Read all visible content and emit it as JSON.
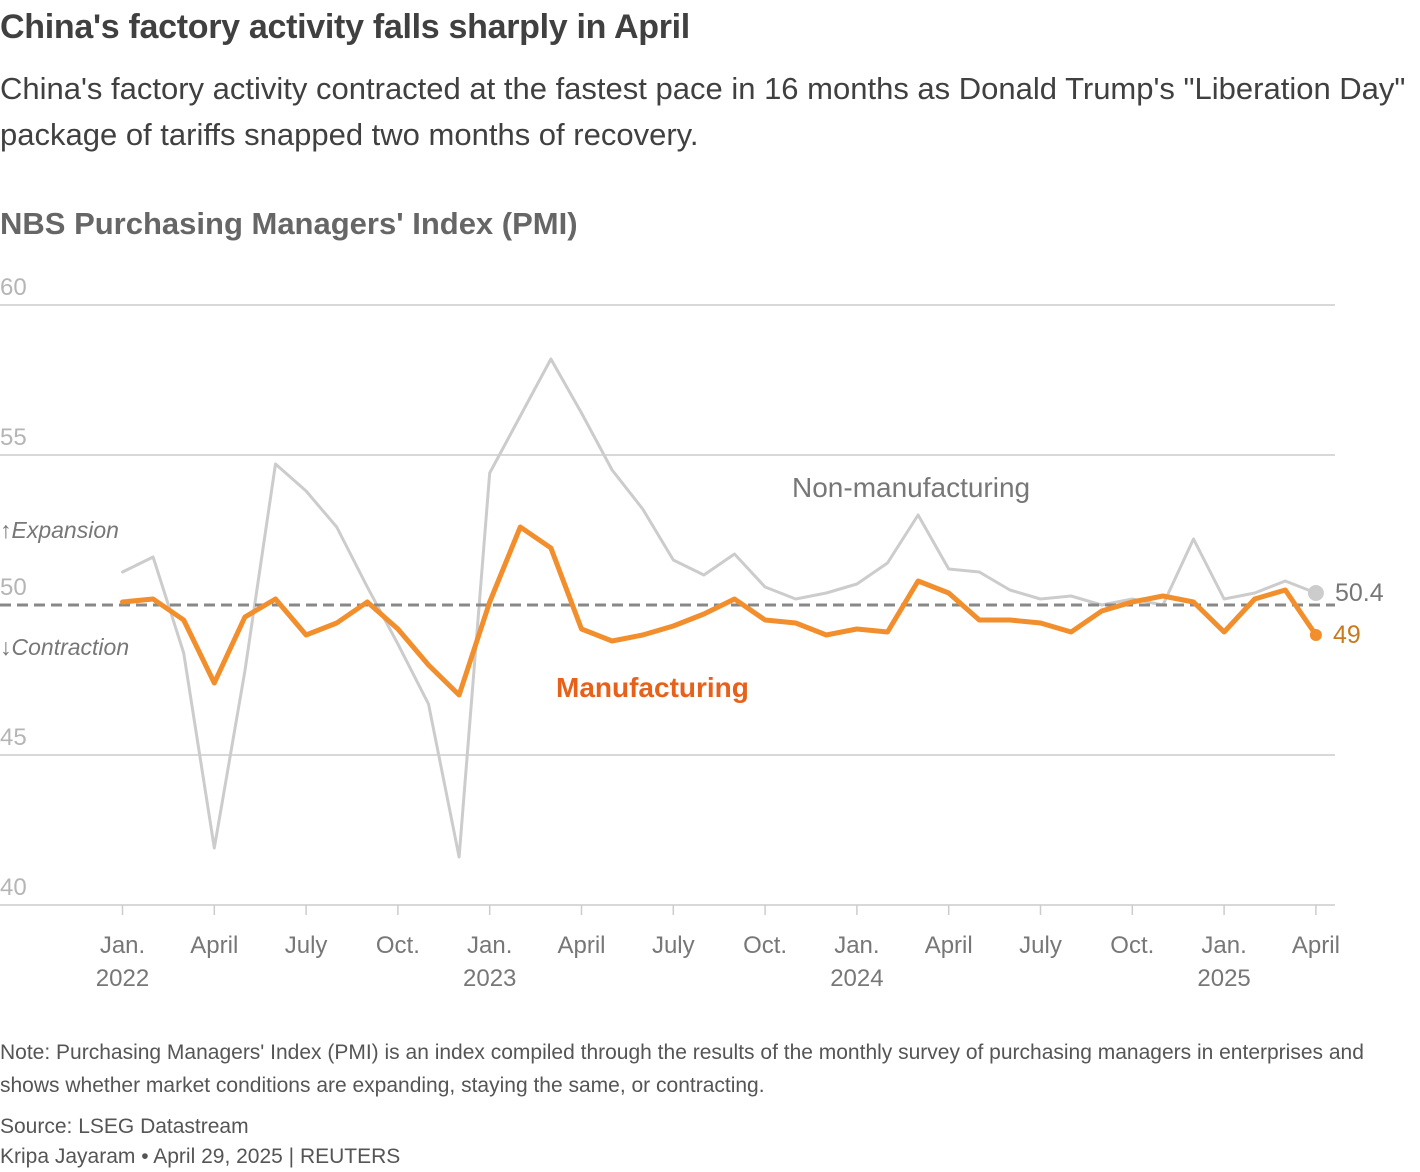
{
  "header": {
    "title": "China's factory activity falls sharply in April",
    "subtitle": "China's factory activity contracted at the fastest pace in 16 months as Donald Trump's \"Liberation Day\" package of tariffs snapped two months of recovery.",
    "chart_title": "NBS Purchasing Managers' Index (PMI)"
  },
  "footer": {
    "note": "Note: Purchasing Managers' Index (PMI) is an index compiled through the results of the monthly survey of purchasing managers in enterprises and shows whether market conditions are expanding, staying the same, or contracting.",
    "source": "Source: LSEG Datastream",
    "byline": "Kripa Jayaram • April 29, 2025 | REUTERS"
  },
  "colors": {
    "manufacturing": "#f28e2b",
    "manufacturing_label": "#e8611a",
    "manufacturing_value": "#c77a1e",
    "non_manufacturing": "#cccccc",
    "non_manufacturing_label": "#777777",
    "gridline": "#cccccc",
    "tick_text": "#b5b5b5",
    "axis_label": "#777777",
    "reference_line": "#888888"
  },
  "chart_data": {
    "type": "line",
    "title": "NBS Purchasing Managers' Index (PMI)",
    "xlabel": "",
    "ylabel": "",
    "ylim": [
      40,
      60
    ],
    "yticks": [
      40,
      45,
      50,
      55,
      60
    ],
    "reference_value": 50,
    "reference_labels": {
      "above": "↑Expansion",
      "below": "↓Contraction"
    },
    "x": [
      "2022-01",
      "2022-02",
      "2022-03",
      "2022-04",
      "2022-05",
      "2022-06",
      "2022-07",
      "2022-08",
      "2022-09",
      "2022-10",
      "2022-11",
      "2022-12",
      "2023-01",
      "2023-02",
      "2023-03",
      "2023-04",
      "2023-05",
      "2023-06",
      "2023-07",
      "2023-08",
      "2023-09",
      "2023-10",
      "2023-11",
      "2023-12",
      "2024-01",
      "2024-02",
      "2024-03",
      "2024-04",
      "2024-05",
      "2024-06",
      "2024-07",
      "2024-08",
      "2024-09",
      "2024-10",
      "2024-11",
      "2024-12",
      "2025-01",
      "2025-02",
      "2025-03",
      "2025-04"
    ],
    "x_ticks": [
      {
        "index": 0,
        "month": "Jan.",
        "year": "2022"
      },
      {
        "index": 3,
        "month": "April",
        "year": ""
      },
      {
        "index": 6,
        "month": "July",
        "year": ""
      },
      {
        "index": 9,
        "month": "Oct.",
        "year": ""
      },
      {
        "index": 12,
        "month": "Jan.",
        "year": "2023"
      },
      {
        "index": 15,
        "month": "April",
        "year": ""
      },
      {
        "index": 18,
        "month": "July",
        "year": ""
      },
      {
        "index": 21,
        "month": "Oct.",
        "year": ""
      },
      {
        "index": 24,
        "month": "Jan.",
        "year": "2024"
      },
      {
        "index": 27,
        "month": "April",
        "year": ""
      },
      {
        "index": 30,
        "month": "July",
        "year": ""
      },
      {
        "index": 33,
        "month": "Oct.",
        "year": ""
      },
      {
        "index": 36,
        "month": "Jan.",
        "year": "2025"
      },
      {
        "index": 39,
        "month": "April",
        "year": ""
      }
    ],
    "series": [
      {
        "name": "Non-manufacturing",
        "label": "Non-manufacturing",
        "last_value_label": "50.4",
        "values": [
          51.1,
          51.6,
          48.4,
          41.9,
          47.8,
          54.7,
          53.8,
          52.6,
          50.6,
          48.7,
          46.7,
          41.6,
          54.4,
          56.3,
          58.2,
          56.4,
          54.5,
          53.2,
          51.5,
          51.0,
          51.7,
          50.6,
          50.2,
          50.4,
          50.7,
          51.4,
          53.0,
          51.2,
          51.1,
          50.5,
          50.2,
          50.3,
          50.0,
          50.2,
          50.0,
          52.2,
          50.2,
          50.4,
          50.8,
          50.4
        ]
      },
      {
        "name": "Manufacturing",
        "label": "Manufacturing",
        "last_value_label": "49",
        "values": [
          50.1,
          50.2,
          49.5,
          47.4,
          49.6,
          50.2,
          49.0,
          49.4,
          50.1,
          49.2,
          48.0,
          47.0,
          50.1,
          52.6,
          51.9,
          49.2,
          48.8,
          49.0,
          49.3,
          49.7,
          50.2,
          49.5,
          49.4,
          49.0,
          49.2,
          49.1,
          50.8,
          50.4,
          49.5,
          49.5,
          49.4,
          49.1,
          49.8,
          50.1,
          50.3,
          50.1,
          49.1,
          50.2,
          50.5,
          49.0
        ]
      }
    ]
  }
}
